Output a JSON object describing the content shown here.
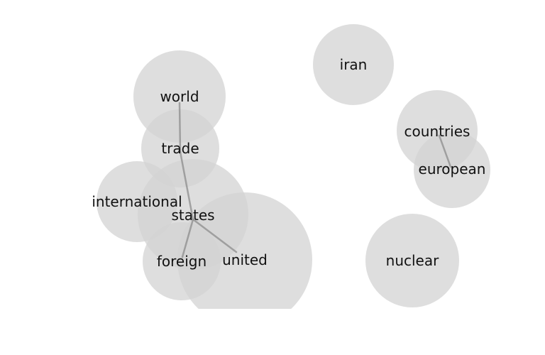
{
  "chart_data": {
    "type": "word-bubble-network",
    "title": "",
    "nodes": [
      {
        "id": "united",
        "label": "united",
        "weight": 10.0
      },
      {
        "id": "states",
        "label": "states",
        "weight": 6.8
      },
      {
        "id": "world",
        "label": "world",
        "weight": 4.8
      },
      {
        "id": "nuclear",
        "label": "nuclear",
        "weight": 4.9
      },
      {
        "id": "trade",
        "label": "trade",
        "weight": 3.4
      },
      {
        "id": "international",
        "label": "international",
        "weight": 3.7
      },
      {
        "id": "foreign",
        "label": "foreign",
        "weight": 3.4
      },
      {
        "id": "iran",
        "label": "iran",
        "weight": 3.6
      },
      {
        "id": "countries",
        "label": "countries",
        "weight": 3.6
      },
      {
        "id": "european",
        "label": "european",
        "weight": 3.3
      }
    ],
    "links": [
      {
        "source": "world",
        "target": "trade"
      },
      {
        "source": "trade",
        "target": "states"
      },
      {
        "source": "states",
        "target": "united"
      },
      {
        "source": "states",
        "target": "foreign"
      },
      {
        "source": "countries",
        "target": "european"
      }
    ]
  }
}
